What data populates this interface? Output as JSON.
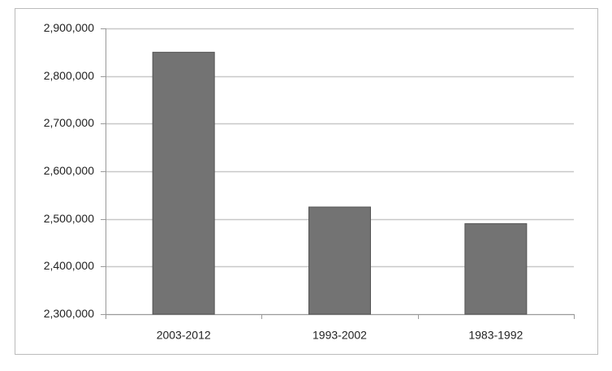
{
  "chart_data": {
    "type": "bar",
    "categories": [
      "2003-2012",
      "1993-2002",
      "1983-1992"
    ],
    "values": [
      2850000,
      2525000,
      2490000
    ],
    "color": "#737373",
    "ylim": [
      2300000,
      2900000
    ],
    "yticks": [
      {
        "value": 2300000,
        "label": "2,300,000"
      },
      {
        "value": 2400000,
        "label": "2,400,000"
      },
      {
        "value": 2500000,
        "label": "2,500,000"
      },
      {
        "value": 2600000,
        "label": "2,600,000"
      },
      {
        "value": 2700000,
        "label": "2,700,000"
      },
      {
        "value": 2800000,
        "label": "2,800,000"
      },
      {
        "value": 2900000,
        "label": "2,900,000"
      }
    ],
    "grid": true
  }
}
